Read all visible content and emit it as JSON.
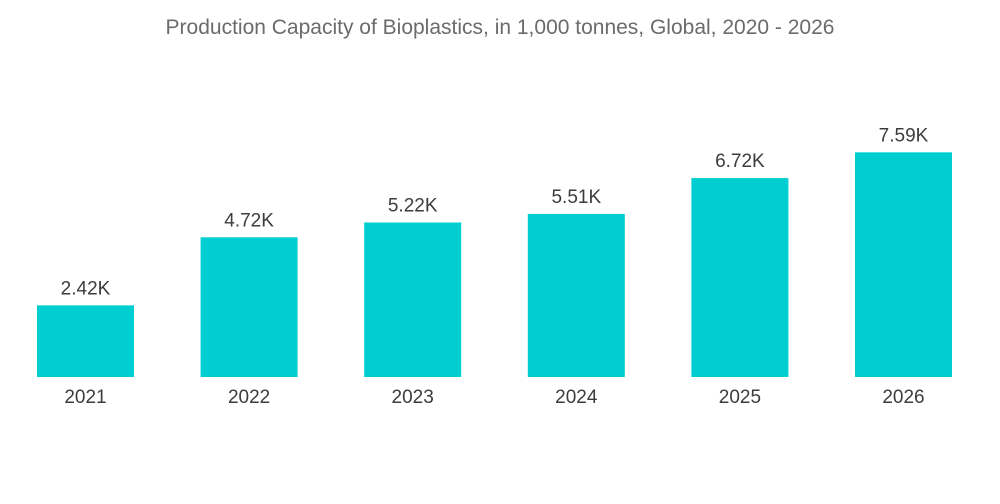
{
  "chart_data": {
    "type": "bar",
    "title": "Production Capacity of Bioplastics, in 1,000 tonnes, Global, 2020 - 2026",
    "xlabel": "",
    "ylabel": "",
    "categories": [
      "2021",
      "2022",
      "2023",
      "2024",
      "2025",
      "2026"
    ],
    "values": [
      2.42,
      4.72,
      5.22,
      5.51,
      6.72,
      7.59
    ],
    "data_labels": [
      "2.42K",
      "4.72K",
      "5.22K",
      "5.51K",
      "6.72K",
      "7.59K"
    ],
    "ylim": [
      0,
      8.5
    ],
    "grid": false,
    "legend": "none",
    "bar_color": "#00CED1"
  }
}
